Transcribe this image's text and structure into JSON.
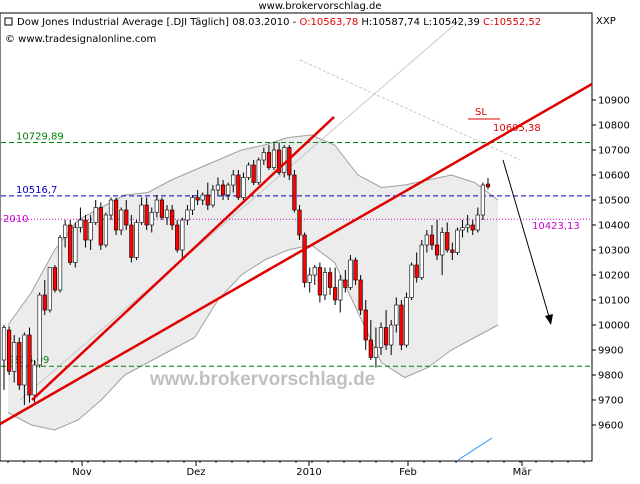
{
  "page": {
    "top_url": "www.brokervorschlag.de",
    "header": {
      "name": "Dow Jones Industrial Average [.DJI  Täglich]",
      "date": "08.03.2010",
      "open_label": "O:10563,78",
      "high_label": "H:10587,74",
      "low_label": "L:10542,39",
      "close_label": "C:10552,52",
      "symbol": "XXP"
    },
    "copyright": "© www.tradesignalonline.com",
    "watermark": "www.brokervorschlag.de",
    "sl_label": "SL"
  },
  "colors": {
    "up": "#ffffff",
    "down": "#ff0000",
    "trendline": "#e00000",
    "resistance": "#008000",
    "blue_level": "#0000c0",
    "magenta_level": "#cc00cc",
    "band_fill": "#ececec",
    "band_line": "#a0a0a0"
  },
  "chart_data": {
    "type": "candlestick",
    "title": "Dow Jones Industrial Average [.DJI  Täglich]",
    "interval": "Täglich",
    "last_bar": {
      "date": "08.03.2010",
      "open": 10563.78,
      "high": 10587.74,
      "low": 10542.39,
      "close": 10552.52
    },
    "x_ticks": [
      "Nov",
      "Dez",
      "2010",
      "Feb",
      "Mär"
    ],
    "y_ticks": [
      9600,
      9700,
      9800,
      9900,
      10000,
      10100,
      10200,
      10300,
      10400,
      10500,
      10600,
      10700,
      10800,
      10900
    ],
    "ylim": [
      9500,
      10950
    ],
    "candles": [
      {
        "o": 9860,
        "h": 10000,
        "l": 9740,
        "c": 9990
      },
      {
        "o": 9980,
        "h": 9995,
        "l": 9800,
        "c": 9815
      },
      {
        "o": 9815,
        "h": 9960,
        "l": 9770,
        "c": 9930
      },
      {
        "o": 9930,
        "h": 9950,
        "l": 9740,
        "c": 9760
      },
      {
        "o": 9760,
        "h": 9970,
        "l": 9680,
        "c": 9960
      },
      {
        "o": 9960,
        "h": 9990,
        "l": 9690,
        "c": 9720
      },
      {
        "o": 9720,
        "h": 9860,
        "l": 9690,
        "c": 9840
      },
      {
        "o": 9840,
        "h": 10130,
        "l": 9830,
        "c": 10120
      },
      {
        "o": 10120,
        "h": 10180,
        "l": 10040,
        "c": 10060
      },
      {
        "o": 10060,
        "h": 10230,
        "l": 10050,
        "c": 10230
      },
      {
        "o": 10230,
        "h": 10240,
        "l": 10130,
        "c": 10140
      },
      {
        "o": 10140,
        "h": 10360,
        "l": 10130,
        "c": 10350
      },
      {
        "o": 10350,
        "h": 10420,
        "l": 10310,
        "c": 10400
      },
      {
        "o": 10400,
        "h": 10420,
        "l": 10240,
        "c": 10250
      },
      {
        "o": 10250,
        "h": 10410,
        "l": 10230,
        "c": 10390
      },
      {
        "o": 10390,
        "h": 10470,
        "l": 10370,
        "c": 10420
      },
      {
        "o": 10420,
        "h": 10440,
        "l": 10310,
        "c": 10340
      },
      {
        "o": 10340,
        "h": 10440,
        "l": 10300,
        "c": 10410
      },
      {
        "o": 10410,
        "h": 10500,
        "l": 10400,
        "c": 10470
      },
      {
        "o": 10470,
        "h": 10490,
        "l": 10300,
        "c": 10320
      },
      {
        "o": 10320,
        "h": 10450,
        "l": 10310,
        "c": 10440
      },
      {
        "o": 10440,
        "h": 10510,
        "l": 10420,
        "c": 10500
      },
      {
        "o": 10500,
        "h": 10510,
        "l": 10360,
        "c": 10380
      },
      {
        "o": 10380,
        "h": 10470,
        "l": 10360,
        "c": 10460
      },
      {
        "o": 10460,
        "h": 10500,
        "l": 10380,
        "c": 10400
      },
      {
        "o": 10400,
        "h": 10440,
        "l": 10250,
        "c": 10270
      },
      {
        "o": 10270,
        "h": 10420,
        "l": 10260,
        "c": 10410
      },
      {
        "o": 10410,
        "h": 10510,
        "l": 10400,
        "c": 10480
      },
      {
        "o": 10480,
        "h": 10510,
        "l": 10380,
        "c": 10400
      },
      {
        "o": 10400,
        "h": 10470,
        "l": 10370,
        "c": 10450
      },
      {
        "o": 10450,
        "h": 10520,
        "l": 10430,
        "c": 10500
      },
      {
        "o": 10500,
        "h": 10510,
        "l": 10420,
        "c": 10430
      },
      {
        "o": 10430,
        "h": 10480,
        "l": 10400,
        "c": 10460
      },
      {
        "o": 10460,
        "h": 10480,
        "l": 10380,
        "c": 10400
      },
      {
        "o": 10400,
        "h": 10420,
        "l": 10290,
        "c": 10300
      },
      {
        "o": 10300,
        "h": 10430,
        "l": 10270,
        "c": 10420
      },
      {
        "o": 10420,
        "h": 10480,
        "l": 10400,
        "c": 10460
      },
      {
        "o": 10460,
        "h": 10520,
        "l": 10440,
        "c": 10510
      },
      {
        "o": 10510,
        "h": 10540,
        "l": 10480,
        "c": 10500
      },
      {
        "o": 10500,
        "h": 10530,
        "l": 10480,
        "c": 10520
      },
      {
        "o": 10520,
        "h": 10570,
        "l": 10460,
        "c": 10480
      },
      {
        "o": 10480,
        "h": 10560,
        "l": 10470,
        "c": 10540
      },
      {
        "o": 10540,
        "h": 10590,
        "l": 10520,
        "c": 10560
      },
      {
        "o": 10560,
        "h": 10580,
        "l": 10500,
        "c": 10520
      },
      {
        "o": 10520,
        "h": 10570,
        "l": 10500,
        "c": 10560
      },
      {
        "o": 10560,
        "h": 10620,
        "l": 10530,
        "c": 10600
      },
      {
        "o": 10600,
        "h": 10620,
        "l": 10500,
        "c": 10510
      },
      {
        "o": 10510,
        "h": 10610,
        "l": 10500,
        "c": 10590
      },
      {
        "o": 10590,
        "h": 10650,
        "l": 10580,
        "c": 10640
      },
      {
        "o": 10640,
        "h": 10660,
        "l": 10560,
        "c": 10570
      },
      {
        "o": 10570,
        "h": 10670,
        "l": 10560,
        "c": 10660
      },
      {
        "o": 10660,
        "h": 10710,
        "l": 10640,
        "c": 10690
      },
      {
        "o": 10690,
        "h": 10720,
        "l": 10620,
        "c": 10630
      },
      {
        "o": 10630,
        "h": 10730,
        "l": 10620,
        "c": 10700
      },
      {
        "o": 10700,
        "h": 10730,
        "l": 10600,
        "c": 10610
      },
      {
        "o": 10610,
        "h": 10720,
        "l": 10590,
        "c": 10710
      },
      {
        "o": 10710,
        "h": 10720,
        "l": 10580,
        "c": 10600
      },
      {
        "o": 10600,
        "h": 10620,
        "l": 10450,
        "c": 10460
      },
      {
        "o": 10460,
        "h": 10480,
        "l": 10340,
        "c": 10360
      },
      {
        "o": 10360,
        "h": 10370,
        "l": 10150,
        "c": 10170
      },
      {
        "o": 10170,
        "h": 10230,
        "l": 10130,
        "c": 10200
      },
      {
        "o": 10200,
        "h": 10240,
        "l": 10160,
        "c": 10230
      },
      {
        "o": 10230,
        "h": 10250,
        "l": 10090,
        "c": 10120
      },
      {
        "o": 10120,
        "h": 10230,
        "l": 10100,
        "c": 10210
      },
      {
        "o": 10210,
        "h": 10230,
        "l": 10120,
        "c": 10150
      },
      {
        "o": 10150,
        "h": 10230,
        "l": 10080,
        "c": 10100
      },
      {
        "o": 10100,
        "h": 10200,
        "l": 10050,
        "c": 10180
      },
      {
        "o": 10180,
        "h": 10220,
        "l": 10130,
        "c": 10150
      },
      {
        "o": 10150,
        "h": 10280,
        "l": 10140,
        "c": 10260
      },
      {
        "o": 10260,
        "h": 10270,
        "l": 10160,
        "c": 10180
      },
      {
        "o": 10180,
        "h": 10200,
        "l": 10040,
        "c": 10060
      },
      {
        "o": 10060,
        "h": 10100,
        "l": 9900,
        "c": 9940
      },
      {
        "o": 9940,
        "h": 10020,
        "l": 9860,
        "c": 9870
      },
      {
        "o": 9870,
        "h": 9990,
        "l": 9830,
        "c": 9910
      },
      {
        "o": 9910,
        "h": 10010,
        "l": 9880,
        "c": 9990
      },
      {
        "o": 9990,
        "h": 10060,
        "l": 9900,
        "c": 9920
      },
      {
        "o": 9920,
        "h": 10020,
        "l": 9880,
        "c": 10000
      },
      {
        "o": 10000,
        "h": 10110,
        "l": 9970,
        "c": 10080
      },
      {
        "o": 10080,
        "h": 10100,
        "l": 9900,
        "c": 9920
      },
      {
        "o": 9920,
        "h": 10130,
        "l": 9910,
        "c": 10110
      },
      {
        "o": 10110,
        "h": 10250,
        "l": 10100,
        "c": 10240
      },
      {
        "o": 10240,
        "h": 10290,
        "l": 10170,
        "c": 10190
      },
      {
        "o": 10190,
        "h": 10340,
        "l": 10180,
        "c": 10320
      },
      {
        "o": 10320,
        "h": 10380,
        "l": 10290,
        "c": 10360
      },
      {
        "o": 10360,
        "h": 10400,
        "l": 10300,
        "c": 10320
      },
      {
        "o": 10320,
        "h": 10420,
        "l": 10260,
        "c": 10280
      },
      {
        "o": 10280,
        "h": 10390,
        "l": 10200,
        "c": 10370
      },
      {
        "o": 10370,
        "h": 10410,
        "l": 10290,
        "c": 10300
      },
      {
        "o": 10300,
        "h": 10330,
        "l": 10260,
        "c": 10290
      },
      {
        "o": 10290,
        "h": 10390,
        "l": 10280,
        "c": 10380
      },
      {
        "o": 10380,
        "h": 10420,
        "l": 10350,
        "c": 10390
      },
      {
        "o": 10390,
        "h": 10440,
        "l": 10370,
        "c": 10400
      },
      {
        "o": 10400,
        "h": 10420,
        "l": 10360,
        "c": 10380
      },
      {
        "o": 10380,
        "h": 10470,
        "l": 10370,
        "c": 10440
      },
      {
        "o": 10440,
        "h": 10570,
        "l": 10420,
        "c": 10560
      },
      {
        "o": 10563.78,
        "h": 10587.74,
        "l": 10542.39,
        "c": 10552.52
      }
    ],
    "levels": [
      {
        "value": 10729.89,
        "label": "10729,89",
        "color": "#008000"
      },
      {
        "value": 10516.7,
        "label": "10516,7",
        "color": "#0000c0"
      },
      {
        "value": 10423.13,
        "label": "10423,13",
        "color": "#cc00cc",
        "left_label": "2010"
      },
      {
        "value": 9835.09,
        "label": "9835,09",
        "color": "#008000"
      }
    ],
    "stop_loss": {
      "label": "SL",
      "value": 10605.38,
      "value_label": "10605,38"
    },
    "upper_band": [
      10000,
      10130,
      10300,
      10420,
      10470,
      10520,
      10530,
      10580,
      10620,
      10660,
      10700,
      10720,
      10750,
      10760,
      10720,
      10600,
      10550,
      10560,
      10580,
      10600,
      10570,
      10500
    ],
    "lower_band": [
      9650,
      9600,
      9580,
      9620,
      9700,
      9800,
      9850,
      9900,
      9950,
      10100,
      10200,
      10260,
      10300,
      10320,
      10250,
      10050,
      9850,
      9790,
      9830,
      9900,
      9950,
      10000
    ]
  }
}
